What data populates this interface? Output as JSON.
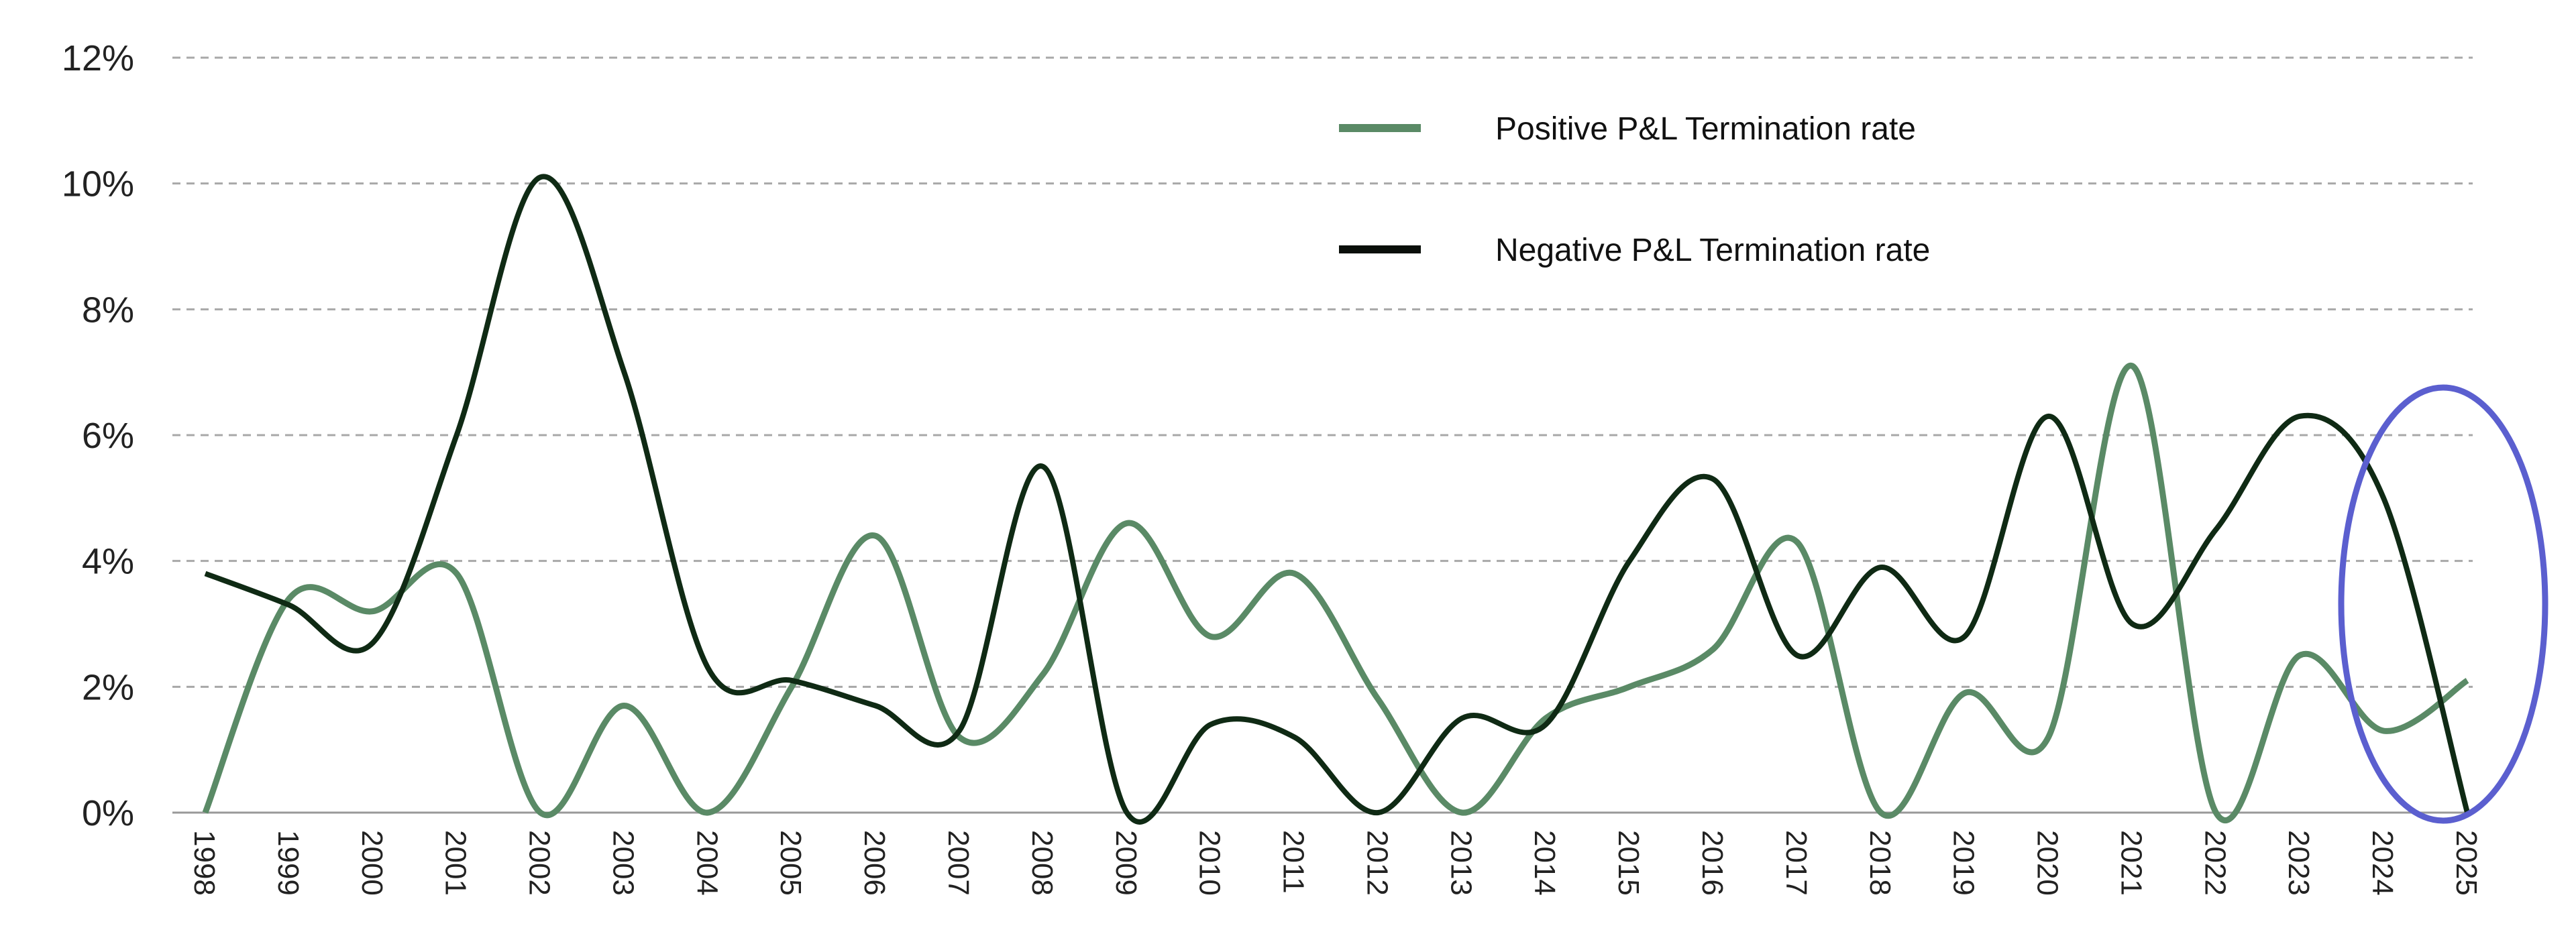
{
  "chart_data": {
    "type": "line",
    "title": "",
    "xlabel": "",
    "ylabel": "",
    "ylim": [
      0,
      12
    ],
    "y_ticks": [
      "0%",
      "2%",
      "4%",
      "6%",
      "8%",
      "10%",
      "12%"
    ],
    "y_tick_values": [
      0,
      2,
      4,
      6,
      8,
      10,
      12
    ],
    "grid": true,
    "legend_position": "top-right",
    "categories": [
      "1998",
      "1999",
      "2000",
      "2001",
      "2002",
      "2003",
      "2004",
      "2005",
      "2006",
      "2007",
      "2008",
      "2009",
      "2010",
      "2011",
      "2012",
      "2013",
      "2014",
      "2015",
      "2016",
      "2017",
      "2018",
      "2019",
      "2020",
      "2021",
      "2022",
      "2023",
      "2024",
      "2025"
    ],
    "series": [
      {
        "name": "Positive P&L Termination rate",
        "color": "#5a8a66",
        "values": [
          0,
          3.4,
          3.2,
          3.8,
          0,
          1.7,
          0,
          2.0,
          4.4,
          1.2,
          2.2,
          4.6,
          2.8,
          3.8,
          1.8,
          0,
          1.5,
          2.0,
          2.6,
          4.3,
          0,
          1.9,
          1.2,
          7.1,
          0,
          2.5,
          1.3,
          2.1
        ]
      },
      {
        "name": "Negative P&L Termination rate",
        "color": "#0f2a14",
        "values": [
          3.8,
          3.3,
          2.7,
          6.0,
          10.1,
          7.0,
          2.3,
          2.1,
          1.7,
          1.3,
          5.5,
          0,
          1.4,
          1.2,
          0,
          1.5,
          1.4,
          4.0,
          5.3,
          2.5,
          3.9,
          2.8,
          6.3,
          3.0,
          4.5,
          6.3,
          5.0,
          0
        ]
      }
    ],
    "annotation": {
      "shape": "ellipse",
      "target_years": [
        "2024",
        "2025"
      ],
      "color": "#5b5fcf"
    }
  }
}
